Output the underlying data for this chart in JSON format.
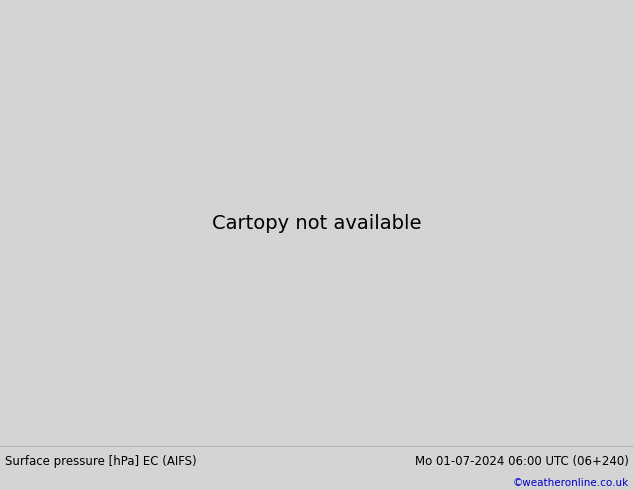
{
  "title_left": "Surface pressure [hPa] EC (AIFS)",
  "title_right": "Mo 01-07-2024 06:00 UTC (06+240)",
  "credit": "©weatheronline.co.uk",
  "bg_ocean": "#d4d4d4",
  "land_color": "#c8e8b0",
  "coast_color": "#888888",
  "figsize": [
    6.34,
    4.9
  ],
  "dpi": 100,
  "footer_bg": "#e0e0e0",
  "blue": "#0000ee",
  "red": "#cc2200",
  "black": "#000000",
  "coast_lw": 0.4,
  "blue_lw": 1.1,
  "black_lw": 1.5,
  "red_lw": 1.1,
  "label_fs": 7
}
